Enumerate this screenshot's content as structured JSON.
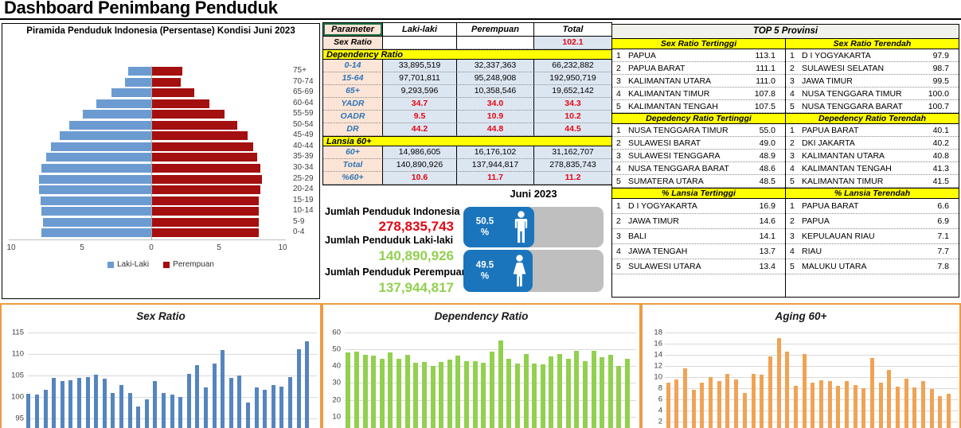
{
  "header": {
    "title": "Dashboard Penimbang Penduduk"
  },
  "summary": {
    "month": "Juni 2023",
    "stats": [
      {
        "label": "Jumlah Penduduk Indonesia",
        "value": "278,835,743",
        "color": "#e30613"
      },
      {
        "label": "Jumlah Penduduk Laki-laki",
        "value": "140,890,926",
        "color": "#92D050"
      },
      {
        "label": "Jumlah Penduduk Perempuan",
        "value": "137,944,817",
        "color": "#92D050"
      }
    ],
    "gender_bars": [
      {
        "percent": "50.5",
        "unit": "%",
        "icon": "male-figure-icon"
      },
      {
        "percent": "49.5",
        "unit": "%",
        "icon": "female-figure-icon"
      }
    ],
    "bar_fill_color": "#1B75BC",
    "track_color": "#BFBFBF"
  },
  "param_table": {
    "headers": [
      "Parameter",
      "Laki-laki",
      "Perempuan",
      "Total"
    ],
    "rows": [
      {
        "type": "data",
        "label": "Sex Ratio",
        "label_color": "#000000",
        "cells": [
          "",
          "",
          "102.1"
        ],
        "red": true,
        "cell_bg": [
          "#FFFFFF",
          "#FFFFFF",
          "#DCE6F1"
        ]
      },
      {
        "type": "banner",
        "label": "Dependency Ratio"
      },
      {
        "type": "data",
        "label": "0-14",
        "cells": [
          "33,895,519",
          "32,337,363",
          "66,232,882"
        ],
        "red": false
      },
      {
        "type": "data",
        "label": "15-64",
        "cells": [
          "97,701,811",
          "95,248,908",
          "192,950,719"
        ],
        "red": false
      },
      {
        "type": "data",
        "label": "65+",
        "cells": [
          "9,293,596",
          "10,358,546",
          "19,652,142"
        ],
        "red": false
      },
      {
        "type": "data",
        "label": "YADR",
        "cells": [
          "34.7",
          "34.0",
          "34.3"
        ],
        "red": true
      },
      {
        "type": "data",
        "label": "OADR",
        "cells": [
          "9.5",
          "10.9",
          "10.2"
        ],
        "red": true
      },
      {
        "type": "data",
        "label": "DR",
        "cells": [
          "44.2",
          "44.8",
          "44.5"
        ],
        "red": true
      },
      {
        "type": "banner",
        "label": "Lansia 60+"
      },
      {
        "type": "data",
        "label": "60+",
        "cells": [
          "14,986,605",
          "16,176,102",
          "31,162,707"
        ],
        "red": false
      },
      {
        "type": "data",
        "label": "Total",
        "cells": [
          "140,890,926",
          "137,944,817",
          "278,835,743"
        ],
        "red": false
      },
      {
        "type": "data",
        "label": "%60+",
        "cells": [
          "10.6",
          "11.7",
          "11.2"
        ],
        "red": true
      }
    ],
    "label_color_default": "#2E75B6",
    "red_value_color": "#e30613",
    "cell_bg_default": "#DCE6F1",
    "label_bg": "#FCE4D6"
  },
  "top5": {
    "title": "TOP 5 Provinsi",
    "sections": [
      {
        "left": {
          "title": "Sex Ratio Tertinggi",
          "rows": [
            [
              "PAPUA",
              "113.1"
            ],
            [
              "PAPUA BARAT",
              "111.1"
            ],
            [
              "KALIMANTAN UTARA",
              "111.0"
            ],
            [
              "KALIMANTAN TIMUR",
              "107.8"
            ],
            [
              "KALIMANTAN TENGAH",
              "107.5"
            ]
          ]
        },
        "right": {
          "title": "Sex Ratio Terendah",
          "rows": [
            [
              "D I YOGYAKARTA",
              "97.9"
            ],
            [
              "SULAWESI SELATAN",
              "98.7"
            ],
            [
              "JAWA TIMUR",
              "99.5"
            ],
            [
              "NUSA TENGGARA TIMUR",
              "100.0"
            ],
            [
              "NUSA TENGGARA BARAT",
              "100.7"
            ]
          ]
        }
      },
      {
        "left": {
          "title": "Depedency Ratio Tertinggi",
          "rows": [
            [
              "NUSA TENGGARA TIMUR",
              "55.0"
            ],
            [
              "SULAWESI BARAT",
              "49.0"
            ],
            [
              "SULAWESI TENGGARA",
              "48.9"
            ],
            [
              "NUSA TENGGARA BARAT",
              "48.6"
            ],
            [
              "SUMATERA UTARA",
              "48.5"
            ]
          ]
        },
        "right": {
          "title": "Depedency Ratio Terendah",
          "rows": [
            [
              "PAPUA BARAT",
              "40.1"
            ],
            [
              "DKI JAKARTA",
              "40.2"
            ],
            [
              "KALIMANTAN UTARA",
              "40.8"
            ],
            [
              "KALIMANTAN TENGAH",
              "41.3"
            ],
            [
              "KALIMANTAN TIMUR",
              "41.5"
            ]
          ]
        }
      },
      {
        "left": {
          "title": "% Lansia Tertinggi",
          "rows": [
            [
              "D I YOGYAKARTA",
              "16.9"
            ],
            [
              "JAWA TIMUR",
              "14.6"
            ],
            [
              "BALI",
              "14.1"
            ],
            [
              "JAWA TENGAH",
              "13.7"
            ],
            [
              "SULAWESI UTARA",
              "13.4"
            ]
          ]
        },
        "right": {
          "title": "% Lansia Terendah",
          "rows": [
            [
              "PAPUA BARAT",
              "6.6"
            ],
            [
              "PAPUA",
              "6.9"
            ],
            [
              "KEPULAUAN RIAU",
              "7.1"
            ],
            [
              "RIAU",
              "7.7"
            ],
            [
              "MALUKU UTARA",
              "7.8"
            ]
          ]
        }
      }
    ]
  },
  "chart_data": [
    {
      "id": "pyramid",
      "type": "bar",
      "orientation": "horizontal-pyramid",
      "title": "Piramida Penduduk Indonesia (Persentase) Kondisi Juni 2023",
      "categories": [
        "75+",
        "70-74",
        "65-69",
        "60-64",
        "55-59",
        "50-54",
        "45-49",
        "40-44",
        "35-39",
        "30-34",
        "25-29",
        "20-24",
        "15-19",
        "10-14",
        "5-9",
        "0-4"
      ],
      "series": [
        {
          "name": "Laki-Laki",
          "color": "#6C9BD2",
          "values": [
            1.7,
            1.9,
            2.9,
            4.0,
            5.0,
            6.0,
            6.7,
            7.3,
            7.7,
            8.0,
            8.2,
            8.2,
            8.1,
            8.0,
            7.9,
            8.0
          ]
        },
        {
          "name": "Perempuan",
          "color": "#A40F0F",
          "values": [
            2.2,
            2.1,
            3.1,
            4.2,
            5.3,
            6.2,
            7.0,
            7.4,
            7.7,
            7.9,
            8.0,
            7.9,
            7.8,
            7.8,
            7.8,
            7.8
          ]
        }
      ],
      "x_ticks": [
        "10",
        "5",
        "0",
        "5",
        "10"
      ],
      "xlim": [
        -10,
        10
      ],
      "units": "percent",
      "legend_position": "bottom"
    },
    {
      "id": "sex_ratio",
      "type": "bar",
      "title": "Sex Ratio",
      "values": [
        100.8,
        100.7,
        101.7,
        104.5,
        103.7,
        104.0,
        104.5,
        104.7,
        105.3,
        104.3,
        101.0,
        102.9,
        101.0,
        97.9,
        99.5,
        103.7,
        101.0,
        100.7,
        100.0,
        105.5,
        107.5,
        102.2,
        107.8,
        111.0,
        104.5,
        105.1,
        98.7,
        102.2,
        101.7,
        102.9,
        102.4,
        104.7,
        111.1,
        113.1
      ],
      "y_ticks": [
        115,
        110,
        105,
        100,
        95
      ],
      "ylim": [
        90,
        115
      ],
      "grid": true,
      "bar_color": "#5585BE",
      "x_tick_labels_visible": false
    },
    {
      "id": "dependency_ratio",
      "type": "bar",
      "title": "Dependency Ratio",
      "values": [
        48.0,
        48.5,
        46.5,
        46.0,
        44.5,
        48.0,
        44.5,
        46.5,
        42.0,
        42.5,
        40.2,
        42.5,
        44.0,
        46.0,
        43.0,
        43.0,
        42.0,
        48.6,
        55.0,
        44.5,
        41.3,
        47.0,
        41.5,
        40.8,
        45.5,
        47.0,
        44.5,
        48.9,
        43.0,
        49.0,
        45.0,
        46.5,
        40.1,
        44.5
      ],
      "y_ticks": [
        60,
        50,
        40,
        30,
        20,
        10
      ],
      "ylim": [
        0,
        60
      ],
      "grid": true,
      "bar_color": "#92D050",
      "x_tick_labels_visible": false
    },
    {
      "id": "aging_60",
      "type": "bar",
      "title": "Aging 60+",
      "values": [
        8.9,
        9.6,
        11.5,
        7.7,
        9.0,
        10.0,
        9.3,
        10.6,
        9.5,
        7.1,
        10.6,
        10.4,
        13.7,
        16.9,
        14.6,
        8.4,
        14.1,
        8.9,
        9.4,
        9.2,
        8.4,
        9.2,
        8.6,
        7.9,
        13.4,
        9.0,
        11.2,
        8.2,
        9.7,
        8.1,
        9.2,
        7.8,
        6.6,
        6.9
      ],
      "y_ticks": [
        18,
        16,
        14,
        12,
        10,
        8,
        6,
        4,
        2
      ],
      "ylim": [
        0,
        18
      ],
      "grid": true,
      "bar_color": "#F0A355",
      "x_tick_labels_visible": false
    }
  ]
}
